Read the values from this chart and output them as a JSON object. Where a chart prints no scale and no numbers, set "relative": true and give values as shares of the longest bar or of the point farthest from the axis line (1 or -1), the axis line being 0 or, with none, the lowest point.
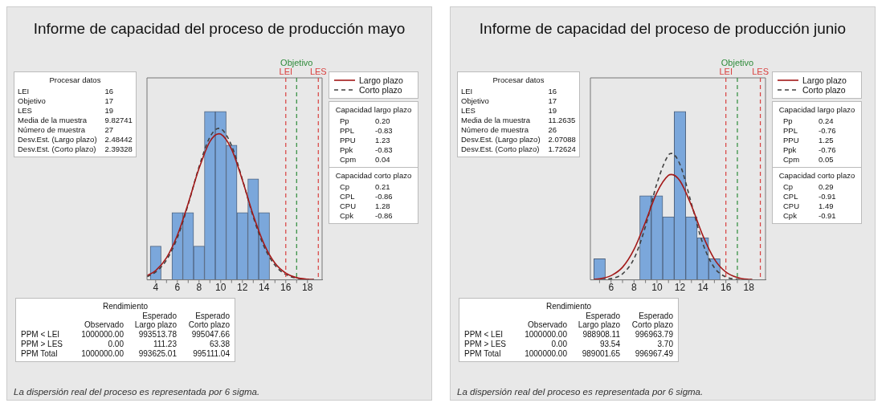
{
  "chart_data": [
    {
      "type": "histogram",
      "title": "Informe de capacidad del proceso de producción mayo",
      "relative": true,
      "bins": [
        3.5,
        4.5,
        5.5,
        6.5,
        7.5,
        8.5,
        9.5,
        10.5,
        11.5,
        12.5,
        13.5,
        14.5
      ],
      "values": [
        0.2,
        0,
        0.4,
        0.4,
        0.2,
        1,
        1,
        0.8,
        0.4,
        0.6,
        0.4
      ],
      "color": "#7ba7db",
      "series": [
        {
          "type": "line",
          "name": "Largo plazo",
          "color": "#a31a1a",
          "line_style": "solid",
          "x": [
            3.2,
            4,
            5,
            6,
            7,
            8,
            9,
            9.83,
            10,
            11,
            12,
            13,
            14,
            15,
            16,
            17,
            18,
            18.6
          ],
          "values": [
            0.025,
            0.055,
            0.131,
            0.265,
            0.454,
            0.662,
            0.821,
            0.868,
            0.866,
            0.776,
            0.592,
            0.384,
            0.212,
            0.099,
            0.04,
            0.013,
            0.004,
            0.002
          ]
        },
        {
          "type": "line",
          "name": "Corto plazo",
          "color": "#404040",
          "line_style": "dashed",
          "x": [
            3.2,
            4,
            5,
            6,
            7,
            8,
            9,
            9.83,
            10,
            11,
            12,
            13,
            14,
            15,
            16,
            17,
            18,
            18.6
          ],
          "values": [
            0.019,
            0.046,
            0.118,
            0.25,
            0.448,
            0.672,
            0.848,
            0.9,
            0.898,
            0.798,
            0.596,
            0.374,
            0.197,
            0.087,
            0.032,
            0.01,
            0.003,
            0.001
          ]
        }
      ],
      "xlim": [
        3.2,
        19.35
      ],
      "xticks": [
        4,
        {
          "value": 5,
          "label": null
        },
        6,
        {
          "value": 7,
          "label": null
        },
        8,
        {
          "value": 9,
          "label": null
        },
        10,
        {
          "value": 11,
          "label": null
        },
        12,
        {
          "value": 13,
          "label": null
        },
        14,
        {
          "value": 15,
          "label": null
        },
        16,
        {
          "value": 17,
          "label": null
        },
        18
      ],
      "ref_lines": [
        {
          "axis": "x",
          "value": 16,
          "label": "LEI",
          "color": "#d9403f",
          "line_style": "dashed"
        },
        {
          "axis": "x",
          "value": 17,
          "label": "Objetivo",
          "color": "#2e8b3a",
          "line_style": "dashed"
        },
        {
          "axis": "x",
          "value": 19,
          "label": "LES",
          "color": "#d9403f",
          "line_style": "dashed"
        }
      ],
      "grid": false,
      "legend": "right",
      "annotations": [
        "La dispersión real del proceso es representada por 6 sigma."
      ]
    },
    {
      "type": "other",
      "title": "Procesar datos",
      "data_labels": true,
      "categories": [
        "LEI",
        "Objetivo",
        "LES",
        "Media de la muestra",
        "Número de muestra",
        "Desv.Est. (Largo plazo)",
        "Desv.Est. (Corto plazo)"
      ],
      "values": [
        16,
        17,
        19,
        9.82741,
        27,
        2.48442,
        2.39328
      ]
    },
    {
      "type": "other",
      "title": "Capacidad largo plazo",
      "data_labels": true,
      "categories": [
        "Pp",
        "PPL",
        "PPU",
        "Ppk",
        "Cpm"
      ],
      "values": [
        0.2,
        -0.83,
        1.23,
        -0.83,
        0.04
      ],
      "value_labels": [
        "0.20",
        "-0.83",
        "1.23",
        "-0.83",
        "0.04"
      ]
    },
    {
      "type": "other",
      "title": "Capacidad corto plazo",
      "data_labels": true,
      "categories": [
        "Cp",
        "CPL",
        "CPU",
        "Cpk"
      ],
      "values": [
        0.21,
        -0.86,
        1.28,
        -0.86
      ],
      "value_labels": [
        "0.21",
        "-0.86",
        "1.28",
        "-0.86"
      ]
    },
    {
      "type": "other",
      "title": "Rendimiento",
      "data_labels": true,
      "categories": [
        "PPM < LEI",
        "PPM > LES",
        "PPM Total"
      ],
      "series": [
        {
          "name": "Observado",
          "values": [
            1000000,
            0,
            1000000
          ],
          "value_labels": [
            "1000000.00",
            "0.00",
            "1000000.00"
          ]
        },
        {
          "name": "Esperado Largo plazo",
          "values": [
            993513.78,
            111.23,
            993625.01
          ],
          "value_labels": [
            "993513.78",
            "111.23",
            "993625.01"
          ]
        },
        {
          "name": "Esperado Corto plazo",
          "values": [
            995047.66,
            63.38,
            995111.04
          ],
          "value_labels": [
            "995047.66",
            "63.38",
            "995111.04"
          ]
        }
      ]
    },
    {
      "type": "histogram",
      "title": "Informe de capacidad del proceso de producción junio",
      "relative": true,
      "bins": [
        4.5,
        5.5,
        6.5,
        7.5,
        8.5,
        9.5,
        10.5,
        11.5,
        12.5,
        13.5,
        14.5,
        15.5
      ],
      "values": [
        0.125,
        0,
        0,
        0,
        0.5,
        0.5,
        0.375,
        1,
        0.375,
        0.25,
        0.125
      ],
      "color": "#7ba7db",
      "series": [
        {
          "type": "line",
          "name": "Largo plazo",
          "color": "#a31a1a",
          "line_style": "solid",
          "x": [
            4.5,
            5,
            6,
            7,
            8,
            9,
            10,
            11,
            11.26,
            12,
            13,
            14,
            15,
            16,
            17,
            18,
            18.3
          ],
          "values": [
            0.003,
            0.006,
            0.025,
            0.075,
            0.181,
            0.344,
            0.52,
            0.621,
            0.626,
            0.588,
            0.441,
            0.262,
            0.123,
            0.046,
            0.014,
            0.003,
            0.002
          ]
        },
        {
          "type": "line",
          "name": "Corto plazo",
          "color": "#404040",
          "line_style": "dashed",
          "x": [
            4.5,
            5,
            6,
            7,
            8,
            9,
            10,
            11,
            11.26,
            12,
            13,
            14,
            15,
            16,
            17,
            18,
            18.3
          ],
          "values": [
            0,
            0.001,
            0.007,
            0.036,
            0.126,
            0.318,
            0.574,
            0.742,
            0.751,
            0.686,
            0.453,
            0.214,
            0.072,
            0.017,
            0.003,
            0,
            0
          ]
        }
      ],
      "xlim": [
        4.2,
        19.45
      ],
      "xticks": [
        {
          "value": 5,
          "label": null
        },
        6,
        {
          "value": 7,
          "label": null
        },
        8,
        {
          "value": 9,
          "label": null
        },
        10,
        {
          "value": 11,
          "label": null
        },
        12,
        {
          "value": 13,
          "label": null
        },
        14,
        {
          "value": 15,
          "label": null
        },
        16,
        {
          "value": 17,
          "label": null
        },
        18
      ],
      "ref_lines": [
        {
          "axis": "x",
          "value": 16,
          "label": "LEI",
          "color": "#d9403f",
          "line_style": "dashed"
        },
        {
          "axis": "x",
          "value": 17,
          "label": "Objetivo",
          "color": "#2e8b3a",
          "line_style": "dashed"
        },
        {
          "axis": "x",
          "value": 19,
          "label": "LES",
          "color": "#d9403f",
          "line_style": "dashed"
        }
      ],
      "grid": false,
      "legend": "right",
      "annotations": [
        "La dispersión real del proceso es representada por 6 sigma."
      ]
    },
    {
      "type": "other",
      "title": "Procesar datos",
      "data_labels": true,
      "categories": [
        "LEI",
        "Objetivo",
        "LES",
        "Media de la muestra",
        "Número de muestra",
        "Desv.Est. (Largo plazo)",
        "Desv.Est. (Corto plazo)"
      ],
      "values": [
        16,
        17,
        19,
        11.2635,
        26,
        2.07088,
        1.72624
      ]
    },
    {
      "type": "other",
      "title": "Capacidad largo plazo",
      "data_labels": true,
      "categories": [
        "Pp",
        "PPL",
        "PPU",
        "Ppk",
        "Cpm"
      ],
      "values": [
        0.24,
        -0.76,
        1.25,
        -0.76,
        0.05
      ],
      "value_labels": [
        "0.24",
        "-0.76",
        "1.25",
        "-0.76",
        "0.05"
      ]
    },
    {
      "type": "other",
      "title": "Capacidad corto plazo",
      "data_labels": true,
      "categories": [
        "Cp",
        "CPL",
        "CPU",
        "Cpk"
      ],
      "values": [
        0.29,
        -0.91,
        1.49,
        -0.91
      ],
      "value_labels": [
        "0.29",
        "-0.91",
        "1.49",
        "-0.91"
      ]
    },
    {
      "type": "other",
      "title": "Rendimiento",
      "data_labels": true,
      "categories": [
        "PPM < LEI",
        "PPM > LES",
        "PPM Total"
      ],
      "series": [
        {
          "name": "Observado",
          "values": [
            1000000,
            0,
            1000000
          ],
          "value_labels": [
            "1000000.00",
            "0.00",
            "1000000.00"
          ]
        },
        {
          "name": "Esperado Largo plazo",
          "values": [
            988908.11,
            93.54,
            989001.65
          ],
          "value_labels": [
            "988908.11",
            "93.54",
            "989001.65"
          ]
        },
        {
          "name": "Esperado Corto plazo",
          "values": [
            996963.79,
            3.7,
            996967.49
          ],
          "value_labels": [
            "996963.79",
            "3.70",
            "996967.49"
          ]
        }
      ]
    }
  ]
}
